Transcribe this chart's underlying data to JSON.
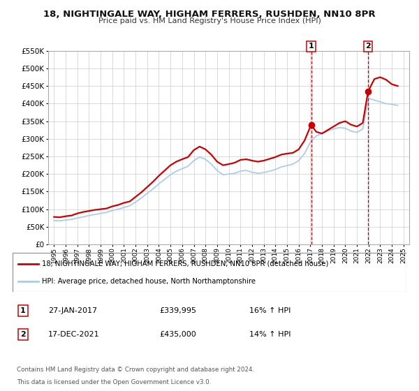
{
  "title": "18, NIGHTINGALE WAY, HIGHAM FERRERS, RUSHDEN, NN10 8PR",
  "subtitle": "Price paid vs. HM Land Registry's House Price Index (HPI)",
  "background_color": "#ffffff",
  "plot_bg_color": "#ffffff",
  "grid_color": "#cccccc",
  "red_line_color": "#cc0000",
  "blue_line_color": "#aaccee",
  "marker_color": "#cc0000",
  "vline_color": "#cc0000",
  "legend_label_red": "18, NIGHTINGALE WAY, HIGHAM FERRERS, RUSHDEN, NN10 8PR (detached house)",
  "legend_label_blue": "HPI: Average price, detached house, North Northamptonshire",
  "annotation1_box": "1",
  "annotation1_date": "27-JAN-2017",
  "annotation1_price": "£339,995",
  "annotation1_hpi": "16% ↑ HPI",
  "annotation1_year": 2017.07,
  "annotation1_value": 339995,
  "annotation2_box": "2",
  "annotation2_date": "17-DEC-2021",
  "annotation2_price": "£435,000",
  "annotation2_hpi": "14% ↑ HPI",
  "annotation2_year": 2021.96,
  "annotation2_value": 435000,
  "footer_line1": "Contains HM Land Registry data © Crown copyright and database right 2024.",
  "footer_line2": "This data is licensed under the Open Government Licence v3.0.",
  "ylim": [
    0,
    550000
  ],
  "yticks": [
    0,
    50000,
    100000,
    150000,
    200000,
    250000,
    300000,
    350000,
    400000,
    450000,
    500000,
    550000
  ],
  "ytick_labels": [
    "£0",
    "£50K",
    "£100K",
    "£150K",
    "£200K",
    "£250K",
    "£300K",
    "£350K",
    "£400K",
    "£450K",
    "£500K",
    "£550K"
  ],
  "xlim_start": 1994.5,
  "xlim_end": 2025.5,
  "xtick_years": [
    1995,
    1996,
    1997,
    1998,
    1999,
    2000,
    2001,
    2002,
    2003,
    2004,
    2005,
    2006,
    2007,
    2008,
    2009,
    2010,
    2011,
    2012,
    2013,
    2014,
    2015,
    2016,
    2017,
    2018,
    2019,
    2020,
    2021,
    2022,
    2023,
    2024,
    2025
  ],
  "red_x": [
    1995.0,
    1995.5,
    1996.0,
    1996.5,
    1997.0,
    1997.5,
    1998.0,
    1998.5,
    1999.0,
    1999.5,
    2000.0,
    2000.5,
    2001.0,
    2001.5,
    2002.0,
    2002.5,
    2003.0,
    2003.5,
    2004.0,
    2004.5,
    2005.0,
    2005.5,
    2006.0,
    2006.5,
    2007.0,
    2007.5,
    2008.0,
    2008.5,
    2009.0,
    2009.5,
    2010.0,
    2010.5,
    2011.0,
    2011.5,
    2012.0,
    2012.5,
    2013.0,
    2013.5,
    2014.0,
    2014.5,
    2015.0,
    2015.5,
    2016.0,
    2016.5,
    2017.07,
    2017.5,
    2018.0,
    2018.5,
    2019.0,
    2019.5,
    2020.0,
    2020.5,
    2021.0,
    2021.5,
    2021.96,
    2022.5,
    2023.0,
    2023.5,
    2024.0,
    2024.5
  ],
  "red_y": [
    78000,
    77000,
    80000,
    82000,
    88000,
    92000,
    95000,
    98000,
    100000,
    102000,
    108000,
    112000,
    118000,
    122000,
    135000,
    148000,
    163000,
    178000,
    195000,
    210000,
    225000,
    235000,
    242000,
    248000,
    268000,
    278000,
    270000,
    255000,
    235000,
    225000,
    228000,
    232000,
    240000,
    242000,
    238000,
    235000,
    238000,
    243000,
    248000,
    255000,
    258000,
    260000,
    270000,
    295000,
    339995,
    320000,
    315000,
    325000,
    335000,
    345000,
    350000,
    340000,
    335000,
    345000,
    435000,
    470000,
    475000,
    468000,
    455000,
    450000
  ],
  "blue_x": [
    1995.0,
    1995.5,
    1996.0,
    1996.5,
    1997.0,
    1997.5,
    1998.0,
    1998.5,
    1999.0,
    1999.5,
    2000.0,
    2000.5,
    2001.0,
    2001.5,
    2002.0,
    2002.5,
    2003.0,
    2003.5,
    2004.0,
    2004.5,
    2005.0,
    2005.5,
    2006.0,
    2006.5,
    2007.0,
    2007.5,
    2008.0,
    2008.5,
    2009.0,
    2009.5,
    2010.0,
    2010.5,
    2011.0,
    2011.5,
    2012.0,
    2012.5,
    2013.0,
    2013.5,
    2014.0,
    2014.5,
    2015.0,
    2015.5,
    2016.0,
    2016.5,
    2017.0,
    2017.5,
    2018.0,
    2018.5,
    2019.0,
    2019.5,
    2020.0,
    2020.5,
    2021.0,
    2021.5,
    2022.0,
    2022.5,
    2023.0,
    2023.5,
    2024.0,
    2024.5
  ],
  "blue_y": [
    68000,
    67000,
    69000,
    71000,
    75000,
    78000,
    82000,
    85000,
    88000,
    91000,
    96000,
    100000,
    105000,
    110000,
    120000,
    132000,
    145000,
    158000,
    172000,
    185000,
    198000,
    208000,
    215000,
    222000,
    238000,
    248000,
    242000,
    228000,
    210000,
    198000,
    200000,
    202000,
    208000,
    210000,
    205000,
    202000,
    204000,
    208000,
    213000,
    220000,
    224000,
    228000,
    238000,
    258000,
    290000,
    308000,
    315000,
    322000,
    328000,
    332000,
    330000,
    322000,
    318000,
    328000,
    415000,
    410000,
    405000,
    400000,
    398000,
    395000
  ]
}
